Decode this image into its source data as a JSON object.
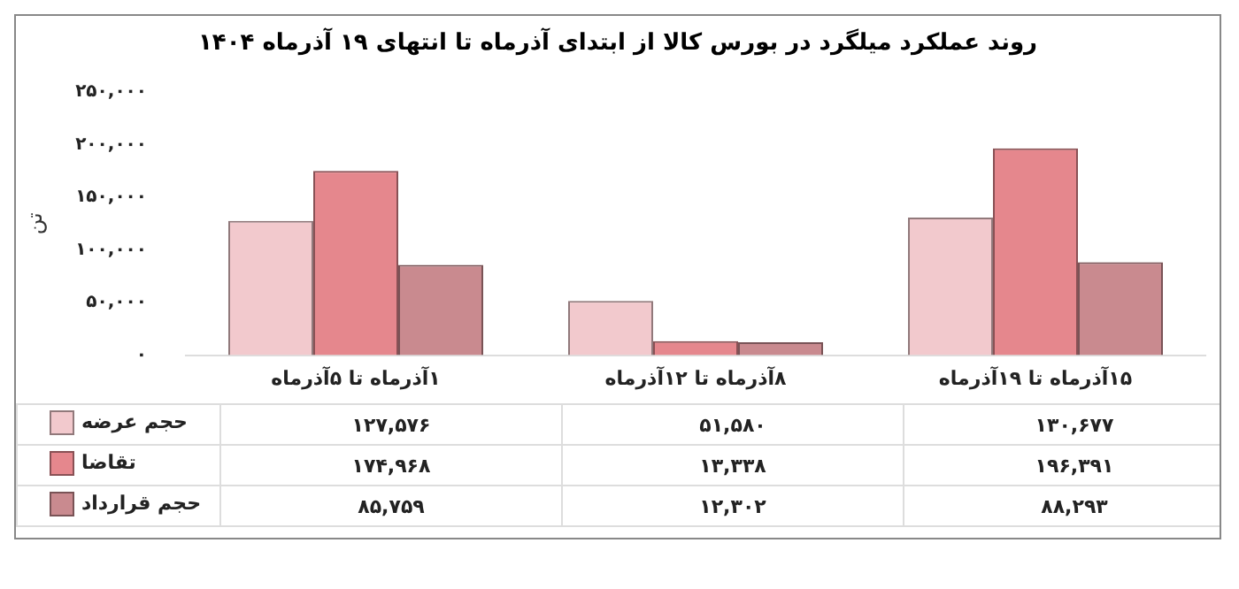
{
  "chart_data": {
    "type": "bar",
    "title": "روند عملکرد میلگرد در بورس کالا از ابتدای آذرماه تا انتهای ۱۹ آذرماه ۱۴۰۴",
    "ylabel": "تن",
    "categories": [
      "۱آذرماه تا ۵آذرماه",
      "۸آذرماه تا ۱۲آذرماه",
      "۱۵آذرماه تا ۱۹آذرماه"
    ],
    "series": [
      {
        "name": "حجم عرضه",
        "color": "#f2c9cd",
        "values": [
          127576,
          51580,
          130677
        ],
        "value_labels": [
          "۱۲۷,۵۷۶",
          "۵۱,۵۸۰",
          "۱۳۰,۶۷۷"
        ]
      },
      {
        "name": "تقاضا",
        "color": "#e5878d",
        "values": [
          174968,
          13338,
          196391
        ],
        "value_labels": [
          "۱۷۴,۹۶۸",
          "۱۳,۳۳۸",
          "۱۹۶,۳۹۱"
        ]
      },
      {
        "name": "حجم قرارداد",
        "color": "#c98a8f",
        "values": [
          85759,
          12302,
          88293
        ],
        "value_labels": [
          "۸۵,۷۵۹",
          "۱۲,۳۰۲",
          "۸۸,۲۹۳"
        ]
      }
    ],
    "ylim": [
      0,
      250000
    ],
    "yticks": [
      {
        "value": 0,
        "label": "۰"
      },
      {
        "value": 50000,
        "label": "۵۰,۰۰۰"
      },
      {
        "value": 100000,
        "label": "۱۰۰,۰۰۰"
      },
      {
        "value": 150000,
        "label": "۱۵۰,۰۰۰"
      },
      {
        "value": 200000,
        "label": "۲۰۰,۰۰۰"
      },
      {
        "value": 250000,
        "label": "۲۵۰,۰۰۰"
      }
    ],
    "grid": false,
    "legend": "bottom left"
  }
}
